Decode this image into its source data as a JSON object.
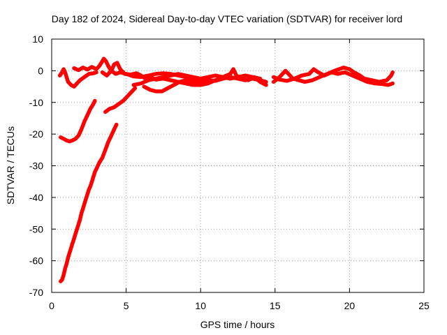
{
  "chart_data": {
    "type": "scatter",
    "title": "Day 182 of 2024, Sidereal Day-to-day VTEC variation (SDTVAR) for receiver lord",
    "xlabel": "GPS time / hours",
    "ylabel": "SDTVAR / TECUs",
    "xlim": [
      0,
      25
    ],
    "ylim": [
      -70,
      10
    ],
    "xticks": [
      0,
      5,
      10,
      15,
      20,
      25
    ],
    "yticks": [
      -70,
      -60,
      -50,
      -40,
      -30,
      -20,
      -10,
      0,
      10
    ],
    "grid": true,
    "series_color": "#ff0000",
    "series": [
      {
        "points": [
          [
            0.55,
            -1.5
          ],
          [
            0.7,
            -0.5
          ],
          [
            0.8,
            0.5
          ],
          [
            0.9,
            -0.5
          ],
          [
            1.0,
            -2.0
          ],
          [
            1.1,
            -3.5
          ],
          [
            1.3,
            -4.5
          ],
          [
            1.5,
            -5.0
          ],
          [
            1.7,
            -4.0
          ],
          [
            1.9,
            -3.0
          ],
          [
            2.2,
            -2.0
          ],
          [
            2.5,
            -1.0
          ],
          [
            2.8,
            -0.8
          ],
          [
            3.0,
            -0.5
          ]
        ]
      },
      {
        "points": [
          [
            1.5,
            0.8
          ],
          [
            1.8,
            0.2
          ],
          [
            2.1,
            1.0
          ],
          [
            2.4,
            0.4
          ],
          [
            2.7,
            1.2
          ],
          [
            3.0,
            0.5
          ],
          [
            3.2,
            1.5
          ],
          [
            3.4,
            3.0
          ],
          [
            3.5,
            3.8
          ],
          [
            3.65,
            3.0
          ],
          [
            3.8,
            1.5
          ],
          [
            4.0,
            0.0
          ],
          [
            4.3,
            -1.0
          ],
          [
            4.6,
            -0.5
          ],
          [
            5.0,
            -1.0
          ],
          [
            5.5,
            -1.8
          ],
          [
            6.0,
            -2.0
          ],
          [
            6.5,
            -1.5
          ],
          [
            7.0,
            -1.0
          ],
          [
            7.5,
            -0.8
          ],
          [
            8.0,
            -1.0
          ],
          [
            8.5,
            -1.5
          ],
          [
            9.0,
            -2.0
          ],
          [
            9.5,
            -2.5
          ],
          [
            10.0,
            -2.8
          ],
          [
            10.5,
            -3.0
          ],
          [
            11.0,
            -3.2
          ],
          [
            11.5,
            -2.5
          ],
          [
            12.0,
            -2.0
          ],
          [
            12.5,
            -2.5
          ],
          [
            13.0,
            -3.0
          ],
          [
            13.5,
            -2.5
          ],
          [
            14.0,
            -3.0
          ],
          [
            14.4,
            -3.5
          ]
        ]
      },
      {
        "points": [
          [
            3.4,
            -0.5
          ],
          [
            3.7,
            -1.5
          ],
          [
            4.0,
            0.0
          ],
          [
            4.2,
            2.0
          ],
          [
            4.4,
            2.5
          ],
          [
            4.6,
            0.5
          ],
          [
            4.9,
            -1.0
          ],
          [
            5.3,
            -1.2
          ],
          [
            5.7,
            -0.8
          ],
          [
            6.0,
            -1.5
          ],
          [
            6.3,
            -2.5
          ],
          [
            6.6,
            -2.0
          ],
          [
            7.0,
            -2.8
          ],
          [
            7.5,
            -2.5
          ],
          [
            8.0,
            -3.0
          ],
          [
            8.5,
            -3.5
          ],
          [
            9.0,
            -4.0
          ],
          [
            9.5,
            -4.5
          ],
          [
            10.0,
            -4.5
          ],
          [
            10.5,
            -4.0
          ],
          [
            11.0,
            -3.0
          ],
          [
            11.5,
            -2.0
          ],
          [
            12.0,
            -1.0
          ],
          [
            12.2,
            0.5
          ],
          [
            12.4,
            -1.5
          ],
          [
            12.8,
            -2.5
          ],
          [
            13.2,
            -3.0
          ],
          [
            13.6,
            -2.0
          ],
          [
            14.0,
            -3.5
          ],
          [
            14.4,
            -4.5
          ]
        ]
      },
      {
        "points": [
          [
            6.2,
            -5.0
          ],
          [
            6.6,
            -6.0
          ],
          [
            7.0,
            -6.5
          ],
          [
            7.4,
            -6.5
          ],
          [
            7.8,
            -5.5
          ],
          [
            8.2,
            -4.5
          ],
          [
            8.6,
            -3.5
          ],
          [
            9.0,
            -3.0
          ],
          [
            9.5,
            -3.5
          ],
          [
            10.0,
            -4.0
          ],
          [
            10.5,
            -3.5
          ],
          [
            11.0,
            -3.0
          ],
          [
            11.5,
            -2.0
          ],
          [
            12.0,
            -2.5
          ]
        ]
      },
      {
        "points": [
          [
            5.5,
            -4.5
          ],
          [
            6.0,
            -4.0
          ],
          [
            6.5,
            -3.0
          ],
          [
            7.0,
            -2.5
          ],
          [
            7.5,
            -2.0
          ],
          [
            8.0,
            -1.5
          ],
          [
            8.5,
            -1.0
          ],
          [
            9.0,
            -1.5
          ],
          [
            9.5,
            -2.0
          ],
          [
            10.0,
            -2.5
          ],
          [
            10.5,
            -2.0
          ],
          [
            11.0,
            -1.5
          ],
          [
            11.5,
            -2.0
          ],
          [
            12.0,
            -2.5
          ],
          [
            12.5,
            -2.0
          ],
          [
            13.0,
            -1.5
          ],
          [
            13.5,
            -2.0
          ],
          [
            14.0,
            -2.5
          ]
        ]
      },
      {
        "points": [
          [
            14.9,
            -3.5
          ],
          [
            15.2,
            -2.5
          ],
          [
            15.5,
            -1.0
          ],
          [
            15.7,
            0.0
          ],
          [
            15.9,
            -1.0
          ],
          [
            16.2,
            -2.5
          ],
          [
            16.6,
            -3.0
          ],
          [
            17.0,
            -3.5
          ],
          [
            17.5,
            -3.0
          ],
          [
            18.0,
            -2.0
          ],
          [
            18.5,
            -1.0
          ],
          [
            19.0,
            0.0
          ],
          [
            19.3,
            0.5
          ],
          [
            19.6,
            1.0
          ],
          [
            20.0,
            0.5
          ],
          [
            20.3,
            -0.5
          ],
          [
            20.7,
            -1.5
          ],
          [
            21.0,
            -2.5
          ],
          [
            21.5,
            -3.0
          ],
          [
            22.0,
            -3.5
          ],
          [
            22.5,
            -3.0
          ],
          [
            22.8,
            -1.5
          ],
          [
            22.9,
            -0.5
          ]
        ]
      },
      {
        "points": [
          [
            14.9,
            -2.0
          ],
          [
            15.3,
            -2.8
          ],
          [
            15.8,
            -3.2
          ],
          [
            16.3,
            -2.5
          ],
          [
            16.8,
            -1.5
          ],
          [
            17.3,
            -1.0
          ],
          [
            17.6,
            0.5
          ],
          [
            17.9,
            -0.5
          ],
          [
            18.3,
            -1.5
          ],
          [
            18.8,
            -0.5
          ],
          [
            19.2,
            -1.0
          ],
          [
            19.7,
            -0.5
          ],
          [
            20.2,
            -1.5
          ],
          [
            20.7,
            -2.5
          ],
          [
            21.2,
            -3.5
          ],
          [
            21.7,
            -4.0
          ],
          [
            22.2,
            -4.2
          ],
          [
            22.6,
            -4.5
          ],
          [
            22.9,
            -4.0
          ]
        ]
      },
      {
        "points": [
          [
            0.6,
            -21.0
          ],
          [
            0.8,
            -21.5
          ],
          [
            1.0,
            -22.0
          ],
          [
            1.2,
            -22.3
          ],
          [
            1.4,
            -22.0
          ],
          [
            1.6,
            -21.5
          ],
          [
            1.8,
            -20.5
          ],
          [
            2.0,
            -18.5
          ],
          [
            2.2,
            -16.0
          ],
          [
            2.4,
            -14.0
          ],
          [
            2.6,
            -12.0
          ],
          [
            2.8,
            -10.5
          ],
          [
            2.9,
            -9.5
          ]
        ]
      },
      {
        "points": [
          [
            3.6,
            -13.0
          ],
          [
            3.9,
            -12.0
          ],
          [
            4.2,
            -11.5
          ],
          [
            4.5,
            -10.5
          ],
          [
            4.8,
            -9.5
          ],
          [
            5.1,
            -8.0
          ],
          [
            5.4,
            -6.5
          ],
          [
            5.6,
            -5.5
          ]
        ]
      },
      {
        "points": [
          [
            0.6,
            -66.5
          ],
          [
            0.7,
            -66.0
          ],
          [
            0.8,
            -64.5
          ],
          [
            0.9,
            -62.5
          ],
          [
            1.0,
            -61.0
          ],
          [
            1.1,
            -59.0
          ],
          [
            1.2,
            -57.5
          ],
          [
            1.3,
            -56.0
          ],
          [
            1.4,
            -54.5
          ],
          [
            1.5,
            -53.0
          ],
          [
            1.6,
            -51.5
          ],
          [
            1.7,
            -50.0
          ],
          [
            1.8,
            -48.5
          ],
          [
            1.9,
            -47.0
          ],
          [
            2.0,
            -45.0
          ],
          [
            2.1,
            -43.5
          ],
          [
            2.2,
            -42.0
          ],
          [
            2.3,
            -40.5
          ],
          [
            2.4,
            -39.0
          ],
          [
            2.5,
            -37.5
          ],
          [
            2.6,
            -36.5
          ],
          [
            2.7,
            -35.0
          ],
          [
            2.8,
            -33.5
          ],
          [
            2.9,
            -32.0
          ],
          [
            3.0,
            -31.0
          ],
          [
            3.2,
            -29.0
          ],
          [
            3.4,
            -27.5
          ],
          [
            3.6,
            -25.0
          ],
          [
            3.8,
            -22.5
          ],
          [
            4.0,
            -20.5
          ],
          [
            4.2,
            -18.5
          ],
          [
            4.35,
            -17.0
          ]
        ]
      }
    ]
  }
}
